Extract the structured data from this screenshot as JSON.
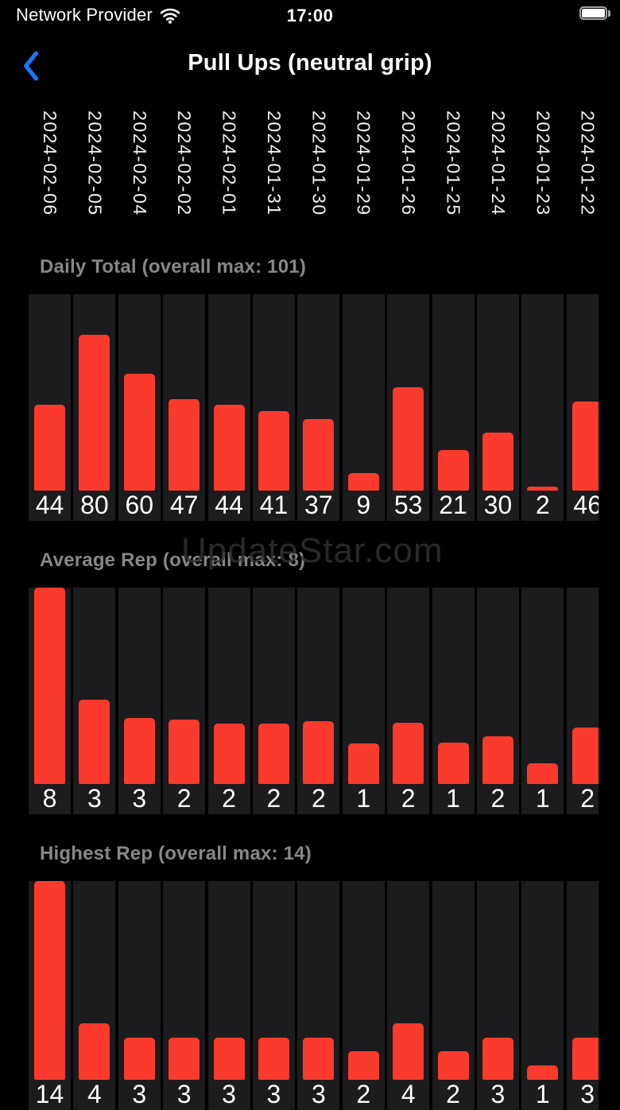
{
  "status_bar": {
    "carrier": "Network Provider",
    "time": "17:00"
  },
  "nav": {
    "title": "Pull Ups (neutral grip)"
  },
  "watermark": "UpdateStar.com",
  "colors": {
    "page_bg": "#000000",
    "column_bg": "#1c1c1e",
    "bar_red": "#f93a2d",
    "title_gray": "#87878b",
    "back_blue": "#1679f6",
    "label_white": "#ffffff"
  },
  "dates": [
    "2024-02-06",
    "2024-02-05",
    "2024-02-04",
    "2024-02-02",
    "2024-02-01",
    "2024-01-31",
    "2024-01-30",
    "2024-01-29",
    "2024-01-26",
    "2024-01-25",
    "2024-01-24",
    "2024-01-23",
    "2024-01-22"
  ],
  "chart_data": [
    {
      "type": "bar",
      "title": "Daily Total (overall max: 101)",
      "metric": "Daily Total",
      "overall_max": 101,
      "ylim": [
        0,
        101
      ],
      "categories": [
        "2024-02-06",
        "2024-02-05",
        "2024-02-04",
        "2024-02-02",
        "2024-02-01",
        "2024-01-31",
        "2024-01-30",
        "2024-01-29",
        "2024-01-26",
        "2024-01-25",
        "2024-01-24",
        "2024-01-23",
        "2024-01-22"
      ],
      "values": [
        44,
        80,
        60,
        47,
        44,
        41,
        37,
        9,
        53,
        21,
        30,
        2,
        46
      ],
      "height_frac": [
        0.436,
        0.792,
        0.594,
        0.465,
        0.436,
        0.406,
        0.366,
        0.089,
        0.525,
        0.208,
        0.297,
        0.02,
        0.455
      ]
    },
    {
      "type": "bar",
      "title": "Average Rep (overall max: 8)",
      "metric": "Average Rep",
      "overall_max": 8,
      "ylim": [
        0,
        8
      ],
      "categories": [
        "2024-02-06",
        "2024-02-05",
        "2024-02-04",
        "2024-02-02",
        "2024-02-01",
        "2024-01-31",
        "2024-01-30",
        "2024-01-29",
        "2024-01-26",
        "2024-01-25",
        "2024-01-24",
        "2024-01-23",
        "2024-01-22"
      ],
      "values": [
        8,
        3,
        3,
        2,
        2,
        2,
        2,
        1,
        2,
        1,
        2,
        1,
        2
      ],
      "height_frac": [
        1.0,
        0.428,
        0.338,
        0.329,
        0.307,
        0.309,
        0.321,
        0.206,
        0.313,
        0.21,
        0.243,
        0.107,
        0.288
      ]
    },
    {
      "type": "bar",
      "title": "Highest Rep (overall max: 14)",
      "metric": "Highest Rep",
      "overall_max": 14,
      "ylim": [
        0,
        14
      ],
      "categories": [
        "2024-02-06",
        "2024-02-05",
        "2024-02-04",
        "2024-02-02",
        "2024-02-01",
        "2024-01-31",
        "2024-01-30",
        "2024-01-29",
        "2024-01-26",
        "2024-01-25",
        "2024-01-24",
        "2024-01-23",
        "2024-01-22"
      ],
      "values": [
        14,
        4,
        3,
        3,
        3,
        3,
        3,
        2,
        4,
        2,
        3,
        1,
        3
      ],
      "height_frac": [
        1.0,
        0.286,
        0.214,
        0.214,
        0.214,
        0.214,
        0.214,
        0.143,
        0.286,
        0.143,
        0.214,
        0.071,
        0.214
      ]
    }
  ]
}
